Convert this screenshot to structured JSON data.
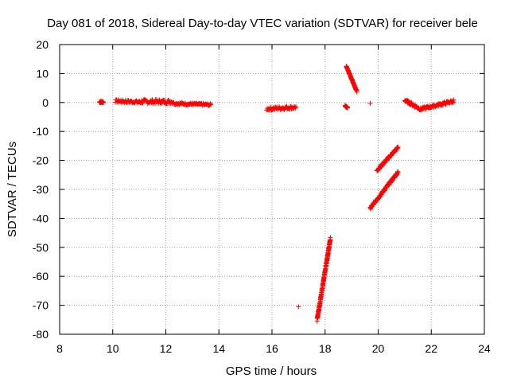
{
  "chart_data": {
    "type": "scatter",
    "title": "Day 081 of 2018, Sidereal Day-to-day VTEC variation (SDTVAR) for receiver bele",
    "xlabel": "GPS time / hours",
    "ylabel": "SDTVAR / TECUs",
    "xlim": [
      8,
      24
    ],
    "ylim": [
      -80,
      20
    ],
    "xticks": [
      "8",
      "10",
      "12",
      "14",
      "16",
      "18",
      "20",
      "22",
      "24"
    ],
    "yticks": [
      "20",
      "10",
      "0",
      "-10",
      "-20",
      "-30",
      "-40",
      "-50",
      "-60",
      "-70",
      "-80"
    ],
    "grid": true,
    "marker": "+",
    "color": "#ff0000",
    "segments": [
      {
        "x0": 9.5,
        "x1": 9.65,
        "y0": 0.2,
        "y1": 0.2,
        "spread": 0.6
      },
      {
        "x0": 10.1,
        "x1": 11.0,
        "y0": 0.5,
        "y1": 0.2,
        "spread": 1.0
      },
      {
        "x0": 11.0,
        "x1": 12.3,
        "y0": 0.3,
        "y1": 0.3,
        "spread": 1.5
      },
      {
        "x0": 12.3,
        "x1": 13.7,
        "y0": -0.3,
        "y1": -0.8,
        "spread": 0.8
      },
      {
        "x0": 15.8,
        "x1": 16.9,
        "y0": -2.2,
        "y1": -1.6,
        "spread": 1.2
      },
      {
        "x0": 18.75,
        "x1": 18.85,
        "y0": -1.2,
        "y1": -1.8,
        "spread": 0.4
      },
      {
        "x0": 18.8,
        "x1": 19.2,
        "y0": 12.5,
        "y1": 3.8,
        "spread": 0.5
      },
      {
        "x0": 17.7,
        "x1": 18.2,
        "y0": -75,
        "y1": -47,
        "spread": 1.0
      },
      {
        "x0": 19.7,
        "x1": 20.75,
        "y0": -36.5,
        "y1": -24,
        "spread": 0.8
      },
      {
        "x0": 19.95,
        "x1": 20.75,
        "y0": -23.5,
        "y1": -15.5,
        "spread": 0.8
      },
      {
        "x0": 21.0,
        "x1": 21.6,
        "y0": 0.8,
        "y1": -2.3,
        "spread": 1.0
      },
      {
        "x0": 21.6,
        "x1": 22.85,
        "y0": -2.3,
        "y1": 0.5,
        "spread": 1.0
      }
    ],
    "points": [
      {
        "x": 17.0,
        "y": -70.5
      },
      {
        "x": 19.7,
        "y": -0.3
      }
    ]
  }
}
